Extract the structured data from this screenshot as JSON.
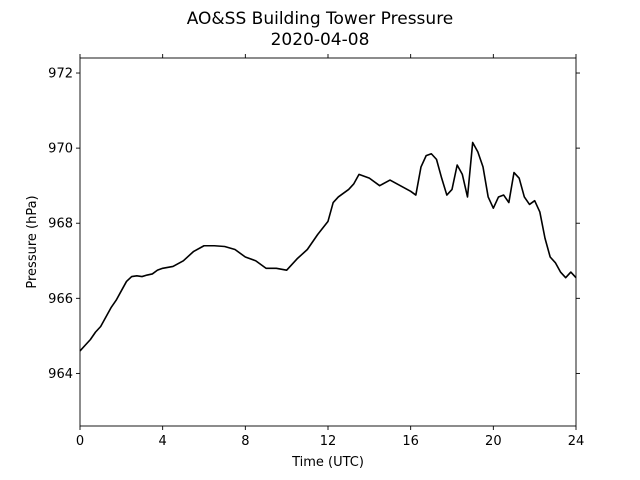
{
  "chart_data": {
    "type": "line",
    "title": "AO&SS Building Tower Pressure",
    "subtitle": "2020-04-08",
    "xlabel": "Time (UTC)",
    "ylabel": "Pressure (hPa)",
    "xlim": [
      0,
      24
    ],
    "ylim": [
      962.6,
      972.4
    ],
    "xticks": [
      0,
      4,
      8,
      12,
      16,
      20,
      24
    ],
    "yticks": [
      964,
      966,
      968,
      970,
      972
    ],
    "grid": false,
    "line_color": "#000000",
    "series": [
      {
        "x": [
          0,
          0.25,
          0.5,
          0.75,
          1,
          1.25,
          1.5,
          1.75,
          2,
          2.25,
          2.5,
          2.75,
          3,
          3.25,
          3.5,
          3.75,
          4,
          4.5,
          5,
          5.5,
          6,
          6.5,
          7,
          7.5,
          8,
          8.5,
          9,
          9.5,
          10,
          10.5,
          11,
          11.5,
          12,
          12.25,
          12.5,
          12.75,
          13,
          13.25,
          13.5,
          13.75,
          14,
          14.5,
          15,
          15.5,
          16,
          16.25,
          16.5,
          16.75,
          17,
          17.25,
          17.5,
          17.75,
          18,
          18.25,
          18.5,
          18.75,
          19,
          19.25,
          19.5,
          19.75,
          20,
          20.25,
          20.5,
          20.75,
          21,
          21.25,
          21.5,
          21.75,
          22,
          22.25,
          22.5,
          22.75,
          23,
          23.25,
          23.5,
          23.75,
          24
        ],
        "y": [
          964.6,
          964.75,
          964.9,
          965.1,
          965.25,
          965.5,
          965.75,
          965.95,
          966.2,
          966.45,
          966.58,
          966.6,
          966.58,
          966.62,
          966.65,
          966.75,
          966.8,
          966.85,
          967.0,
          967.25,
          967.4,
          967.4,
          967.38,
          967.3,
          967.1,
          967.0,
          966.8,
          966.8,
          966.75,
          967.05,
          967.3,
          967.7,
          968.05,
          968.55,
          968.7,
          968.8,
          968.9,
          969.05,
          969.3,
          969.25,
          969.2,
          969.0,
          969.15,
          969.0,
          968.85,
          968.75,
          969.5,
          969.8,
          969.85,
          969.7,
          969.2,
          968.75,
          968.9,
          969.55,
          969.3,
          968.7,
          970.15,
          969.9,
          969.5,
          968.7,
          968.4,
          968.7,
          968.75,
          968.55,
          969.35,
          969.2,
          968.7,
          968.5,
          968.6,
          968.3,
          967.6,
          967.1,
          966.95,
          966.7,
          966.55,
          966.7,
          966.55
        ]
      }
    ]
  }
}
